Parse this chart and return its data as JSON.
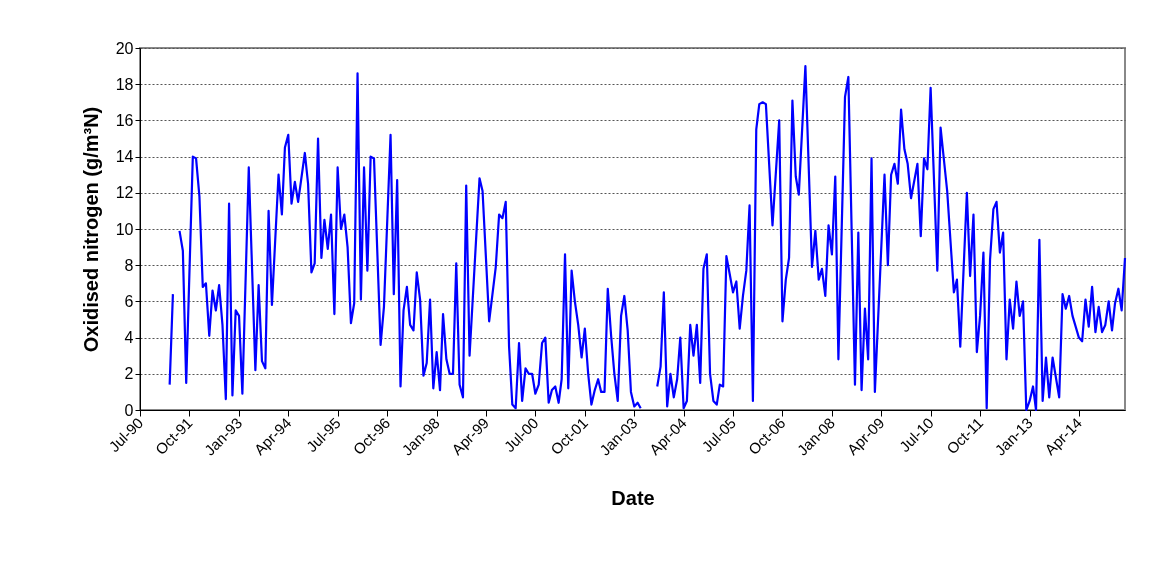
{
  "chart_data": {
    "type": "line",
    "xlabel": "Date",
    "ylabel": "Oxidised nitrogen (g/m³N)",
    "grid": "y",
    "line_style": "solid",
    "xlim": [
      "1990-07",
      "2015-06"
    ],
    "ylim": [
      0,
      20
    ],
    "yticks": [
      0,
      2,
      4,
      6,
      8,
      10,
      12,
      14,
      16,
      18,
      20
    ],
    "xticks": [
      {
        "value": "1990-07",
        "label": "Jul-90"
      },
      {
        "value": "1991-10",
        "label": "Oct-91"
      },
      {
        "value": "1993-01",
        "label": "Jan-93"
      },
      {
        "value": "1994-04",
        "label": "Apr-94"
      },
      {
        "value": "1995-07",
        "label": "Jul-95"
      },
      {
        "value": "1996-10",
        "label": "Oct-96"
      },
      {
        "value": "1998-01",
        "label": "Jan-98"
      },
      {
        "value": "1999-04",
        "label": "Apr-99"
      },
      {
        "value": "2000-07",
        "label": "Jul-00"
      },
      {
        "value": "2001-10",
        "label": "Oct-01"
      },
      {
        "value": "2003-01",
        "label": "Jan-03"
      },
      {
        "value": "2004-04",
        "label": "Apr-04"
      },
      {
        "value": "2005-07",
        "label": "Jul-05"
      },
      {
        "value": "2006-10",
        "label": "Oct-06"
      },
      {
        "value": "2008-01",
        "label": "Jan-08"
      },
      {
        "value": "2009-04",
        "label": "Apr-09"
      },
      {
        "value": "2010-07",
        "label": "Jul-10"
      },
      {
        "value": "2011-10",
        "label": "Oct-11"
      },
      {
        "value": "2013-01",
        "label": "Jan-13"
      },
      {
        "value": "2014-04",
        "label": "Apr-14"
      }
    ],
    "x": [
      "1991-04",
      "1991-05",
      "1991-06",
      "1991-07",
      "1991-08",
      "1991-09",
      "1991-11",
      "1991-12",
      "1992-01",
      "1992-02",
      "1992-03",
      "1992-04",
      "1992-05",
      "1992-06",
      "1992-07",
      "1992-08",
      "1992-09",
      "1992-10",
      "1992-11",
      "1992-12",
      "1993-01",
      "1993-02",
      "1993-04",
      "1993-06",
      "1993-07",
      "1993-08",
      "1993-09",
      "1993-10",
      "1993-11",
      "1994-01",
      "1994-02",
      "1994-03",
      "1994-04",
      "1994-05",
      "1994-06",
      "1994-07",
      "1994-09",
      "1994-10",
      "1994-11",
      "1994-12",
      "1995-01",
      "1995-02",
      "1995-03",
      "1995-04",
      "1995-05",
      "1995-06",
      "1995-07",
      "1995-08",
      "1995-09",
      "1995-10",
      "1995-11",
      "1995-12",
      "1996-01",
      "1996-02",
      "1996-03",
      "1996-04",
      "1996-05",
      "1996-06",
      "1996-08",
      "1996-09",
      "1996-11",
      "1996-12",
      "1997-01",
      "1997-02",
      "1997-03",
      "1997-04",
      "1997-05",
      "1997-06",
      "1997-07",
      "1997-08",
      "1997-09",
      "1997-10",
      "1997-11",
      "1997-12",
      "1998-01",
      "1998-02",
      "1998-03",
      "1998-04",
      "1998-05",
      "1998-06",
      "1998-07",
      "1998-08",
      "1998-09",
      "1998-10",
      "1998-11",
      "1999-02",
      "1999-03",
      "1999-05",
      "1999-07",
      "1999-08",
      "1999-09",
      "1999-10",
      "1999-11",
      "1999-12",
      "2000-01",
      "2000-02",
      "2000-03",
      "2000-04",
      "2000-05",
      "2000-06",
      "2000-07",
      "2000-08",
      "2000-09",
      "2000-10",
      "2000-11",
      "2000-12",
      "2001-01",
      "2001-02",
      "2001-03",
      "2001-04",
      "2001-05",
      "2001-06",
      "2001-07",
      "2001-08",
      "2001-09",
      "2001-10",
      "2001-11",
      "2001-12",
      "2002-01",
      "2002-02",
      "2002-03",
      "2002-04",
      "2002-05",
      "2002-06",
      "2002-07",
      "2002-08",
      "2002-09",
      "2002-10",
      "2002-11",
      "2002-12",
      "2003-01",
      "2003-02",
      "2003-03",
      "2003-04",
      "2003-08",
      "2003-09",
      "2003-10",
      "2003-11",
      "2003-12",
      "2004-01",
      "2004-02",
      "2004-03",
      "2004-04",
      "2004-05",
      "2004-06",
      "2004-07",
      "2004-08",
      "2004-09",
      "2004-10",
      "2004-11",
      "2004-12",
      "2005-01",
      "2005-02",
      "2005-03",
      "2005-04",
      "2005-05",
      "2005-06",
      "2005-07",
      "2005-08",
      "2005-09",
      "2005-10",
      "2005-11",
      "2005-12",
      "2006-01",
      "2006-02",
      "2006-03",
      "2006-04",
      "2006-05",
      "2006-07",
      "2006-09",
      "2006-10",
      "2006-11",
      "2006-12",
      "2007-01",
      "2007-02",
      "2007-03",
      "2007-05",
      "2007-07",
      "2007-08",
      "2007-09",
      "2007-10",
      "2007-11",
      "2007-12",
      "2008-01",
      "2008-02",
      "2008-03",
      "2008-05",
      "2008-06",
      "2008-08",
      "2008-09",
      "2008-10",
      "2008-11",
      "2008-12",
      "2009-01",
      "2009-02",
      "2009-05",
      "2009-06",
      "2009-07",
      "2009-08",
      "2009-09",
      "2009-10",
      "2009-11",
      "2009-12",
      "2010-01",
      "2010-03",
      "2010-04",
      "2010-05",
      "2010-06",
      "2010-07",
      "2010-09",
      "2010-10",
      "2010-12",
      "2011-02",
      "2011-03",
      "2011-04",
      "2011-06",
      "2011-07",
      "2011-08",
      "2011-09",
      "2011-10",
      "2011-11",
      "2011-12",
      "2012-01",
      "2012-02",
      "2012-03",
      "2012-04",
      "2012-05",
      "2012-06",
      "2012-07",
      "2012-08",
      "2012-09",
      "2012-10",
      "2012-11",
      "2012-12",
      "2013-01",
      "2013-02",
      "2013-03",
      "2013-04",
      "2013-05",
      "2013-06",
      "2013-07",
      "2013-08",
      "2013-10",
      "2013-11",
      "2013-12",
      "2014-01",
      "2014-02",
      "2014-04",
      "2014-05",
      "2014-06",
      "2014-07",
      "2014-08",
      "2014-09",
      "2014-10",
      "2014-11",
      "2014-12",
      "2015-01",
      "2015-02",
      "2015-03",
      "2015-04",
      "2015-05",
      "2015-06"
    ],
    "series": [
      {
        "color": "#0000ff",
        "values": [
          1.4,
          6.4,
          null,
          9.9,
          8.8,
          1.5,
          14.0,
          13.9,
          11.8,
          6.8,
          7.0,
          4.1,
          6.6,
          5.5,
          6.9,
          4.7,
          0.6,
          11.4,
          0.8,
          5.5,
          5.2,
          0.9,
          13.4,
          2.2,
          6.9,
          2.7,
          2.3,
          11.0,
          5.8,
          13.0,
          10.8,
          14.5,
          15.2,
          11.4,
          12.6,
          11.5,
          14.2,
          12.5,
          7.6,
          8.1,
          15.0,
          8.4,
          10.5,
          8.9,
          10.8,
          5.3,
          13.4,
          10.0,
          10.8,
          9.0,
          4.8,
          5.9,
          18.6,
          6.1,
          13.4,
          7.7,
          14.0,
          13.9,
          3.6,
          5.7,
          15.2,
          6.4,
          12.7,
          1.3,
          5.5,
          6.8,
          4.7,
          4.4,
          7.6,
          6.1,
          1.9,
          2.6,
          6.1,
          1.2,
          3.2,
          1.1,
          5.3,
          2.8,
          2.0,
          2.0,
          8.1,
          1.4,
          0.7,
          12.4,
          3.0,
          12.8,
          12.1,
          4.9,
          7.9,
          10.8,
          10.6,
          11.5,
          3.5,
          0.3,
          0.1,
          3.7,
          0.5,
          2.3,
          2.0,
          2.0,
          0.9,
          1.4,
          3.7,
          4.0,
          0.4,
          1.1,
          1.3,
          0.4,
          1.7,
          8.6,
          1.2,
          7.7,
          6.0,
          4.7,
          2.9,
          4.5,
          2.0,
          0.3,
          1.1,
          1.7,
          1.0,
          1.0,
          6.7,
          4.1,
          2.0,
          0.5,
          5.2,
          6.3,
          4.4,
          1.0,
          0.2,
          0.4,
          0.1,
          null,
          1.3,
          2.4,
          6.5,
          0.2,
          2.0,
          0.7,
          1.7,
          4.0,
          0.1,
          0.5,
          4.7,
          3.0,
          4.7,
          1.5,
          7.8,
          8.6,
          2.0,
          0.5,
          0.3,
          1.4,
          1.3,
          8.5,
          7.5,
          6.5,
          7.1,
          4.5,
          6.3,
          7.7,
          11.3,
          0.5,
          15.5,
          16.9,
          17.0,
          16.9,
          10.2,
          16.0,
          4.9,
          7.2,
          8.4,
          17.1,
          12.9,
          11.9,
          19.0,
          7.9,
          9.9,
          7.2,
          7.8,
          6.3,
          10.2,
          8.6,
          12.9,
          2.8,
          17.3,
          18.4,
          1.4,
          9.8,
          1.1,
          5.6,
          2.8,
          13.9,
          1.0,
          13.0,
          8.0,
          13.0,
          13.6,
          12.5,
          16.6,
          14.4,
          13.6,
          11.7,
          13.6,
          9.6,
          13.9,
          13.3,
          17.8,
          7.7,
          15.6,
          12.1,
          6.5,
          7.2,
          3.5,
          12.0,
          7.4,
          10.8,
          3.2,
          5.2,
          8.7,
          0.1,
          8.3,
          11.1,
          11.5,
          8.7,
          9.8,
          2.8,
          6.1,
          4.5,
          7.1,
          5.2,
          6.0,
          0.0,
          0.5,
          1.3,
          0.0,
          9.4,
          0.5,
          2.9,
          0.7,
          2.9,
          0.7,
          6.4,
          5.6,
          6.3,
          5.2,
          4.0,
          3.8,
          6.1,
          4.6,
          6.8,
          4.3,
          5.7,
          4.3,
          4.7,
          6.0,
          4.4,
          5.9,
          6.7,
          5.5,
          8.4
        ]
      }
    ]
  }
}
